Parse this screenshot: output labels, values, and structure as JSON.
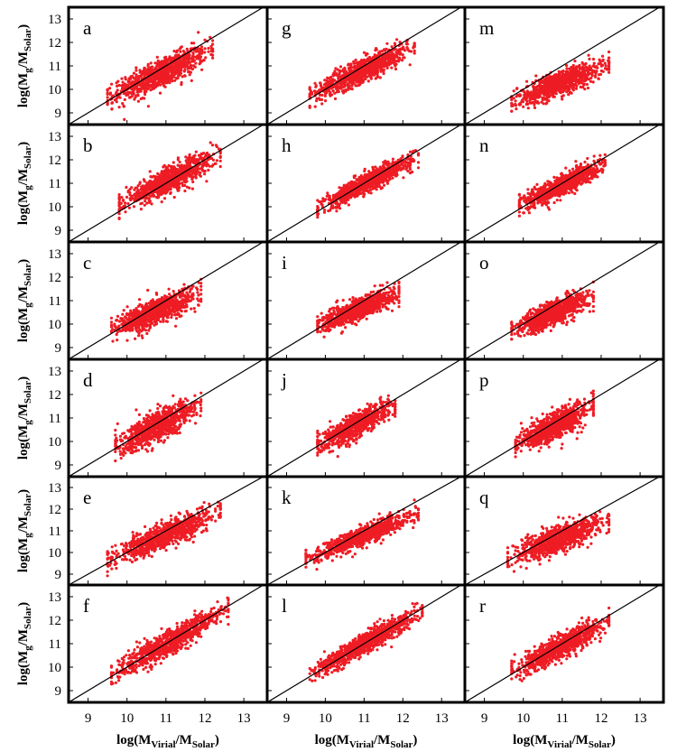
{
  "chart_data": {
    "type": "scatter",
    "layout_grid": "6 rows x 3 columns",
    "color": "#ee1c24",
    "reference_line": "y = x",
    "xlim": [
      8.5,
      13.6
    ],
    "ylim": [
      8.5,
      13.5
    ],
    "x_ticks": [
      "9",
      "10",
      "11",
      "12",
      "13"
    ],
    "y_ticks": [
      "9",
      "10",
      "11",
      "12",
      "13"
    ],
    "xlabel_parts": {
      "main": "log(M",
      "sub1": "Virial",
      "mid": "/M",
      "sub2": "Solar",
      "end": ")"
    },
    "ylabel_parts": {
      "main": "log(M",
      "sub1": "g",
      "mid": "/M",
      "sub2": "Solar",
      "end": ")"
    },
    "panels": [
      {
        "label": "a",
        "x_range": [
          9.5,
          12.2
        ],
        "y_at_x_min": 9.65,
        "slope": 0.75,
        "y_spread": 0.3
      },
      {
        "label": "g",
        "x_range": [
          9.6,
          12.3
        ],
        "y_at_x_min": 9.75,
        "slope": 0.78,
        "y_spread": 0.25
      },
      {
        "label": "m",
        "x_range": [
          9.7,
          12.2
        ],
        "y_at_x_min": 9.5,
        "slope": 0.62,
        "y_spread": 0.25
      },
      {
        "label": "b",
        "x_range": [
          9.8,
          12.4
        ],
        "y_at_x_min": 10.1,
        "slope": 0.82,
        "y_spread": 0.25
      },
      {
        "label": "h",
        "x_range": [
          9.8,
          12.4
        ],
        "y_at_x_min": 9.95,
        "slope": 0.85,
        "y_spread": 0.2
      },
      {
        "label": "n",
        "x_range": [
          9.9,
          12.1
        ],
        "y_at_x_min": 10.05,
        "slope": 0.8,
        "y_spread": 0.22
      },
      {
        "label": "c",
        "x_range": [
          9.6,
          11.9
        ],
        "y_at_x_min": 9.75,
        "slope": 0.68,
        "y_spread": 0.28
      },
      {
        "label": "i",
        "x_range": [
          9.8,
          11.9
        ],
        "y_at_x_min": 9.9,
        "slope": 0.7,
        "y_spread": 0.22
      },
      {
        "label": "o",
        "x_range": [
          9.7,
          11.8
        ],
        "y_at_x_min": 9.75,
        "slope": 0.68,
        "y_spread": 0.25
      },
      {
        "label": "d",
        "x_range": [
          9.7,
          11.9
        ],
        "y_at_x_min": 9.75,
        "slope": 0.82,
        "y_spread": 0.3
      },
      {
        "label": "j",
        "x_range": [
          9.8,
          11.8
        ],
        "y_at_x_min": 9.85,
        "slope": 0.85,
        "y_spread": 0.25
      },
      {
        "label": "p",
        "x_range": [
          9.8,
          11.8
        ],
        "y_at_x_min": 9.85,
        "slope": 0.82,
        "y_spread": 0.28
      },
      {
        "label": "e",
        "x_range": [
          9.5,
          12.4
        ],
        "y_at_x_min": 9.7,
        "slope": 0.75,
        "y_spread": 0.28
      },
      {
        "label": "k",
        "x_range": [
          9.5,
          12.4
        ],
        "y_at_x_min": 9.65,
        "slope": 0.75,
        "y_spread": 0.22
      },
      {
        "label": "q",
        "x_range": [
          9.6,
          12.2
        ],
        "y_at_x_min": 9.7,
        "slope": 0.7,
        "y_spread": 0.3
      },
      {
        "label": "f",
        "x_range": [
          9.6,
          12.6
        ],
        "y_at_x_min": 9.65,
        "slope": 0.95,
        "y_spread": 0.25
      },
      {
        "label": "l",
        "x_range": [
          9.6,
          12.5
        ],
        "y_at_x_min": 9.7,
        "slope": 0.93,
        "y_spread": 0.22
      },
      {
        "label": "r",
        "x_range": [
          9.7,
          12.2
        ],
        "y_at_x_min": 9.8,
        "slope": 0.85,
        "y_spread": 0.25
      }
    ]
  }
}
